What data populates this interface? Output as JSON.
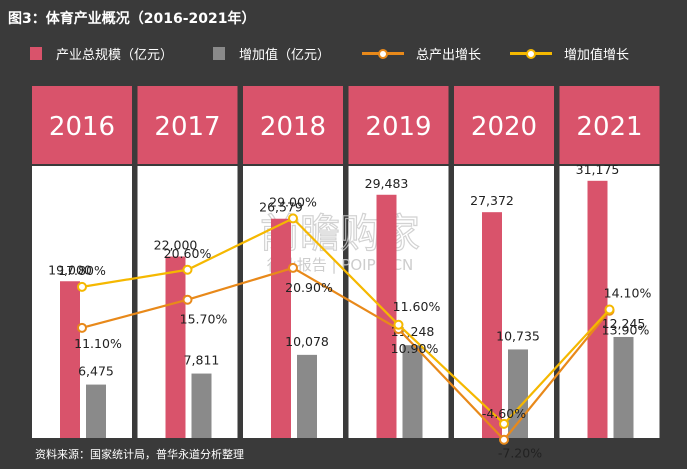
{
  "title": "图3：体育产业概况（2016-2021年）",
  "legend": {
    "total": "产业总规模（亿元）",
    "added": "增加值（亿元）",
    "total_growth": "总产出增长",
    "added_growth": "增加值增长"
  },
  "source": "资料来源：国家统计局，普华永道分析整理",
  "watermark": {
    "line1": "前瞻购家",
    "line2": "行业报告 | POIPO.CN"
  },
  "colors": {
    "total_bar": "#d9536b",
    "added_bar": "#8a8a8a",
    "total_growth_line": "#e8891a",
    "added_growth_line": "#f5b800",
    "header": "#d9536b",
    "panel": "#ffffff"
  },
  "chart_data": {
    "type": "bar",
    "categories": [
      "2016",
      "2017",
      "2018",
      "2019",
      "2020",
      "2021"
    ],
    "series": [
      {
        "name": "产业总规模（亿元）",
        "type": "bar",
        "values": [
          19000,
          22000,
          26579,
          29483,
          27372,
          31175
        ],
        "labels": [
          "19,000",
          "22,000",
          "26,579",
          "29,483",
          "27,372",
          "31,175"
        ]
      },
      {
        "name": "增加值（亿元）",
        "type": "bar",
        "values": [
          6475,
          7811,
          10078,
          11248,
          10735,
          12245
        ],
        "labels": [
          "6,475",
          "7,811",
          "10,078",
          "11,248",
          "10,735",
          "12,245"
        ]
      },
      {
        "name": "总产出增长",
        "type": "line",
        "values": [
          11.1,
          15.7,
          20.9,
          10.9,
          -7.2,
          13.9
        ],
        "labels": [
          "11.10%",
          "15.70%",
          "20.90%",
          "10.90%",
          "-7.20%",
          "13.90%"
        ]
      },
      {
        "name": "增加值增长",
        "type": "line",
        "values": [
          17.8,
          20.6,
          29.0,
          11.6,
          -4.6,
          14.1
        ],
        "labels": [
          "17.80%",
          "20.60%",
          "29.00%",
          "11.60%",
          "-4.60%",
          "14.10%"
        ]
      }
    ],
    "ylim_bars": [
      0,
      40000
    ],
    "ylim_growth": [
      -20,
      50
    ]
  }
}
